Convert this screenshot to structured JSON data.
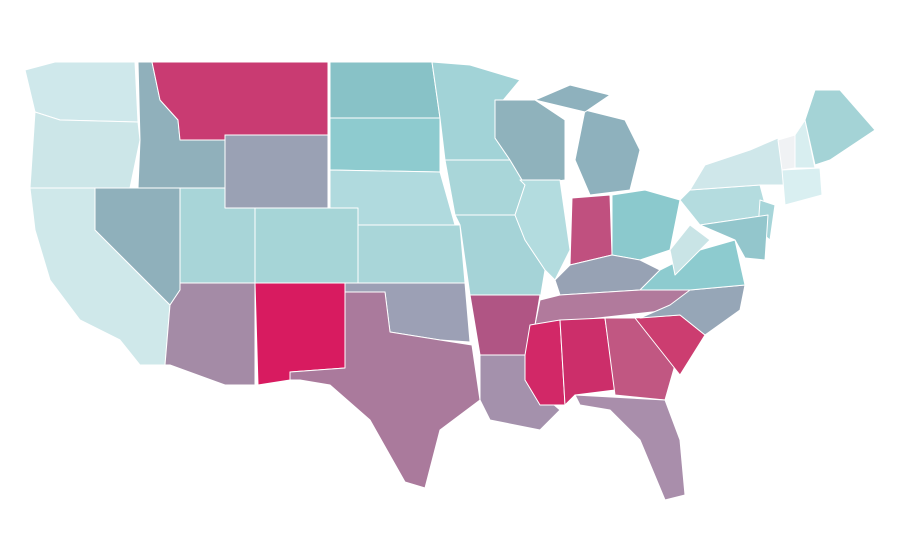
{
  "map": {
    "fills": [
      "#cfe8eb",
      "#cce6e8",
      "#cfe8ea",
      "#90b0bb",
      "#8fb0bb",
      "#c93b72",
      "#9aa1b4",
      "#a8d5d8",
      "#a48ba6",
      "#a6d5d7",
      "#d81b60",
      "#88c2c7",
      "#8ecbcf",
      "#b0dade",
      "#a9d6d9",
      "#9ca0b5",
      "#aa7a9c",
      "#a2d3d7",
      "#a9d6d9",
      "#a5d3d7",
      "#b05584",
      "#a491ac",
      "#8fb2bc",
      "#b3dcdf",
      "#8eb1bd",
      "#8eb1bd",
      "#c0507f",
      "#8bc9cd",
      "#97a2b4",
      "#b17a9c",
      "#d22867",
      "#cc2e6a",
      "#c15782",
      "#a98eab",
      "#cc3d70",
      "#96a6b7",
      "#8dcbcf",
      "#c9e4e6",
      "#b4dcdf",
      "#cfe7ea",
      "#a7d5d9",
      "#93c6cc",
      "#f0f2f4",
      "#d8eef0",
      "#a4d3d6",
      "#d9eff1"
    ]
  }
}
